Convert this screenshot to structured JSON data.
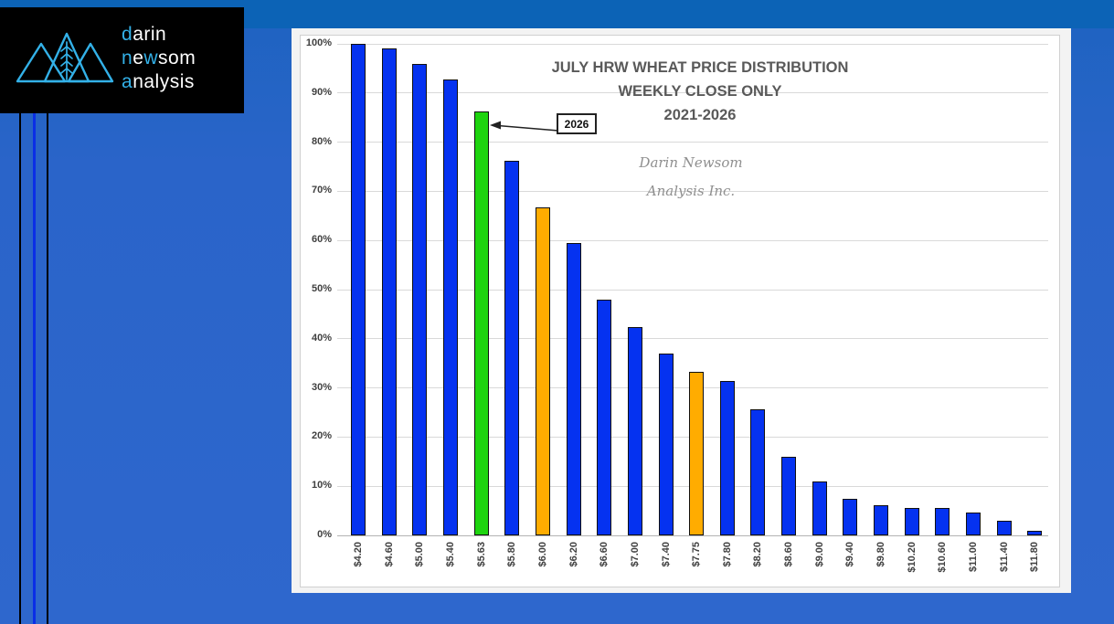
{
  "page": {
    "background_top_band_color": "#0c63b6",
    "background_main_color": "#2a64c9",
    "left_accent_line_color": "#0a2ee6"
  },
  "logo": {
    "box_color": "#000000",
    "accent_color": "#33b1e8",
    "text_color": "#ffffff",
    "icon": "mountain-triangles-wheat-icon",
    "words": [
      {
        "seg1": "d",
        "seg2": "arin"
      },
      {
        "seg1": "n",
        "seg2": "e",
        "seg3": "w",
        "seg4": "som"
      },
      {
        "seg1": "a",
        "seg2": "nalysis"
      }
    ]
  },
  "chart_data": {
    "type": "bar",
    "title": "JULY HRW WHEAT PRICE DISTRIBUTION",
    "subtitle": "WEEKLY CLOSE ONLY",
    "subtitle2": "2021-2026",
    "watermark_line1": "Darin Newsom",
    "watermark_line2": "Analysis Inc.",
    "annotation": {
      "label": "2026",
      "target_category": "$5.63"
    },
    "categories": [
      "$4.20",
      "$4.60",
      "$5.00",
      "$5.40",
      "$5.63",
      "$5.80",
      "$6.00",
      "$6.20",
      "$6.60",
      "$7.00",
      "$7.40",
      "$7.75",
      "$7.80",
      "$8.20",
      "$8.60",
      "$9.00",
      "$9.40",
      "$9.80",
      "$10.20",
      "$10.60",
      "$11.00",
      "$11.40",
      "$11.80"
    ],
    "values": [
      100,
      99,
      96,
      92.8,
      86.3,
      76.2,
      66.7,
      59.4,
      48,
      42.4,
      36.9,
      33.3,
      31.4,
      25.6,
      15.9,
      11,
      7.4,
      6.2,
      5.6,
      5.5,
      4.6,
      2.9,
      1
    ],
    "default_color": "#0532F0",
    "highlights": [
      {
        "category": "$5.63",
        "color": "#1ED40F"
      },
      {
        "category": "$6.00",
        "color": "#FFAC00"
      },
      {
        "category": "$7.75",
        "color": "#FFAC00"
      }
    ],
    "xlabel": "",
    "ylabel": "",
    "ylim": [
      0,
      100
    ],
    "y_tick_labels": [
      "0%",
      "10%",
      "20%",
      "30%",
      "40%",
      "50%",
      "60%",
      "70%",
      "80%",
      "90%",
      "100%"
    ],
    "grid": true,
    "legend": "none",
    "gridline_color": "#d9d9d9",
    "axis_label_color": "#404040",
    "title_color": "#595959"
  }
}
